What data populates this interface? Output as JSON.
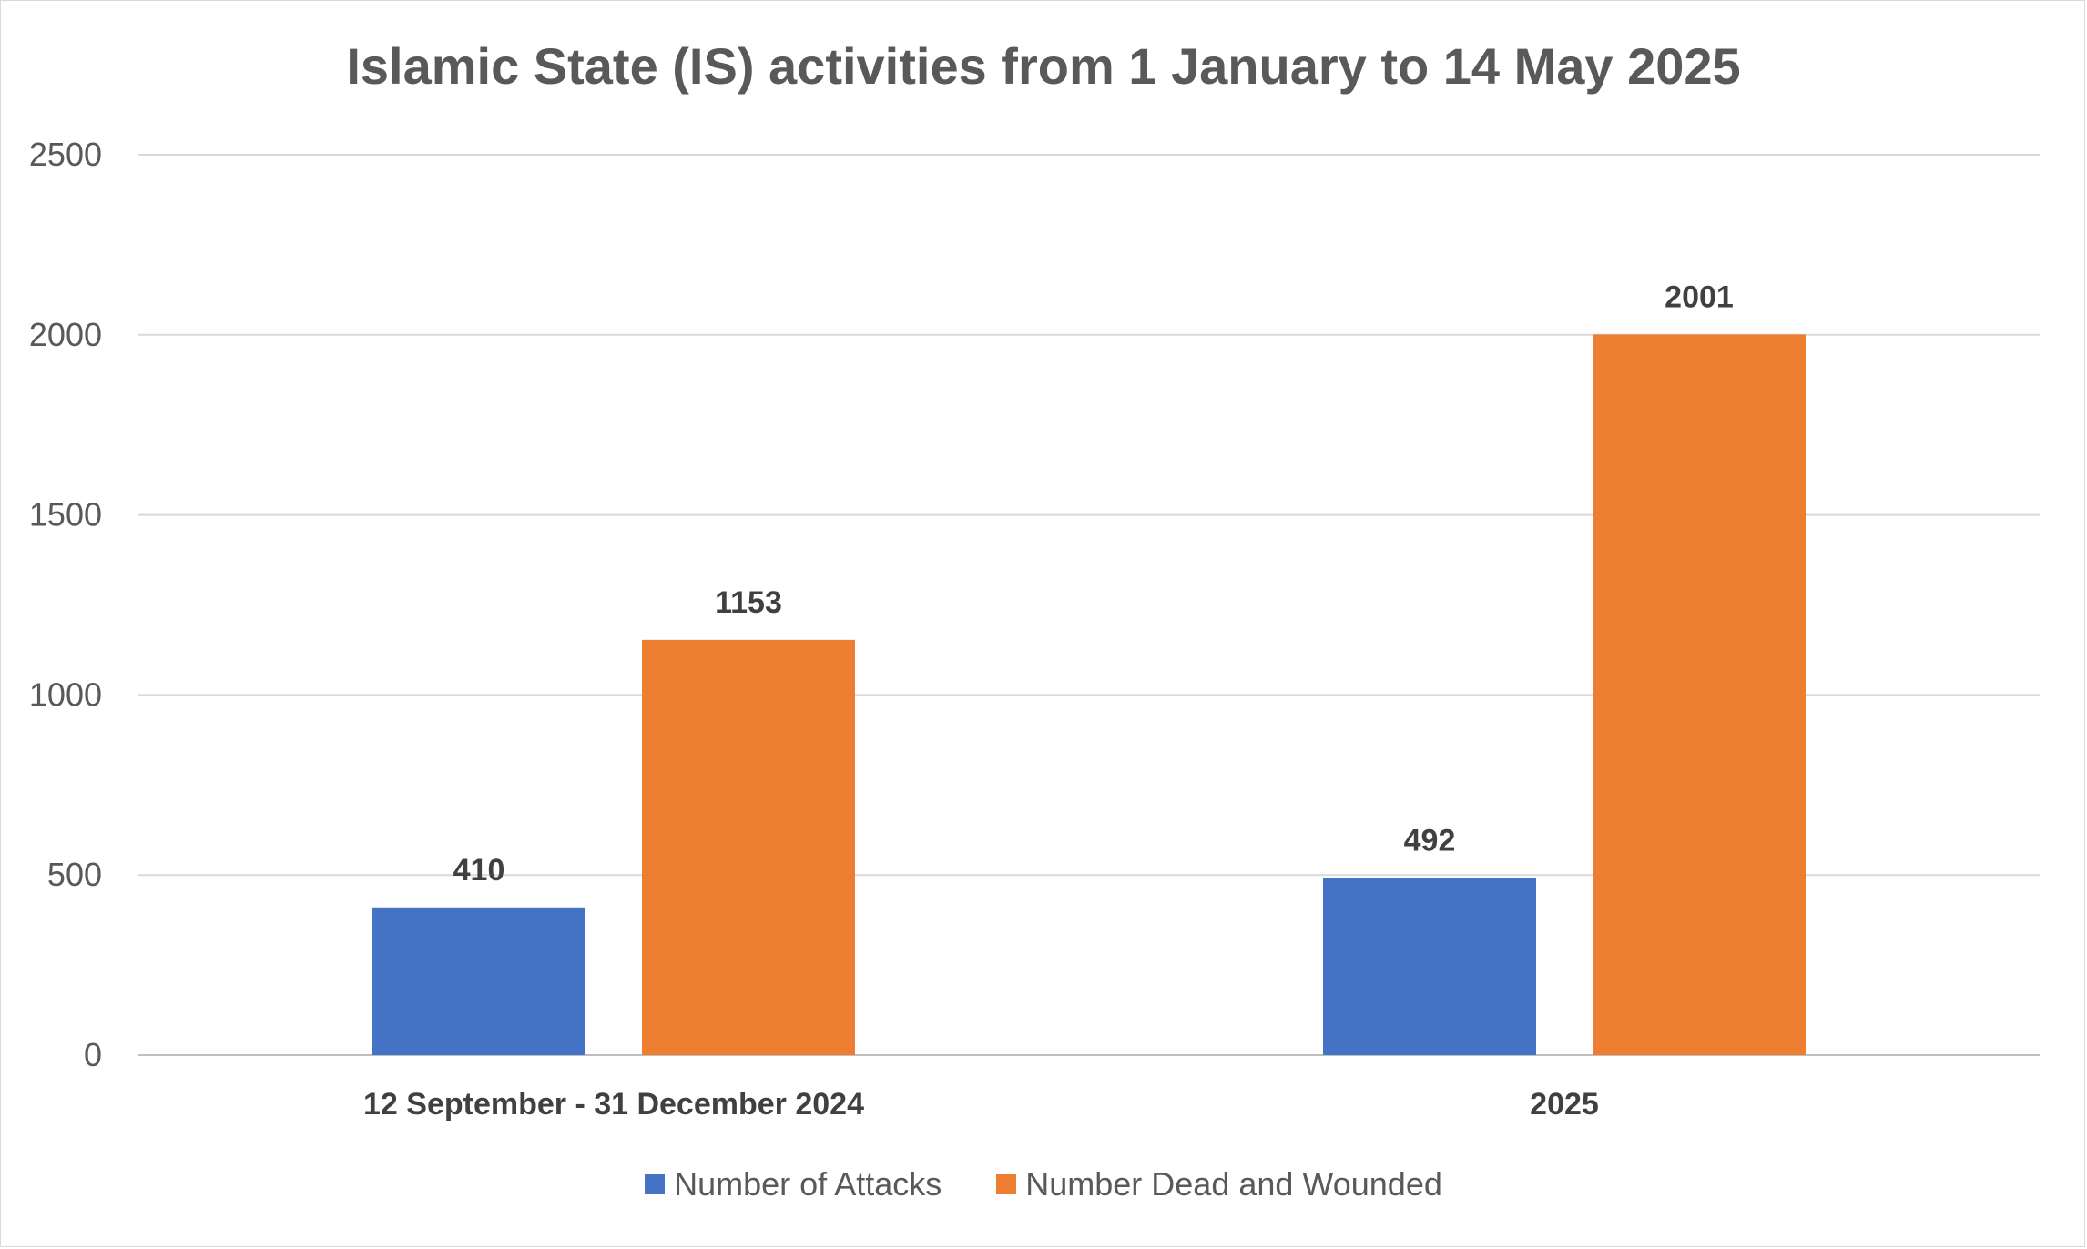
{
  "chart_data": {
    "type": "bar",
    "title": "Islamic State (IS) activities from 1 January to 14 May 2025",
    "xlabel": "",
    "ylabel": "",
    "categories": [
      "12 September - 31 December 2024",
      "2025"
    ],
    "series": [
      {
        "name": "Number of Attacks",
        "values": [
          410,
          492
        ],
        "color": "#4472C4"
      },
      {
        "name": "Number Dead and Wounded",
        "values": [
          1153,
          2001
        ],
        "color": "#ED7D31"
      }
    ],
    "ylim": [
      0,
      2500
    ],
    "yticks": [
      0,
      500,
      1000,
      1500,
      2000,
      2500
    ],
    "grid": true,
    "legend_position": "bottom",
    "data_labels": true
  }
}
